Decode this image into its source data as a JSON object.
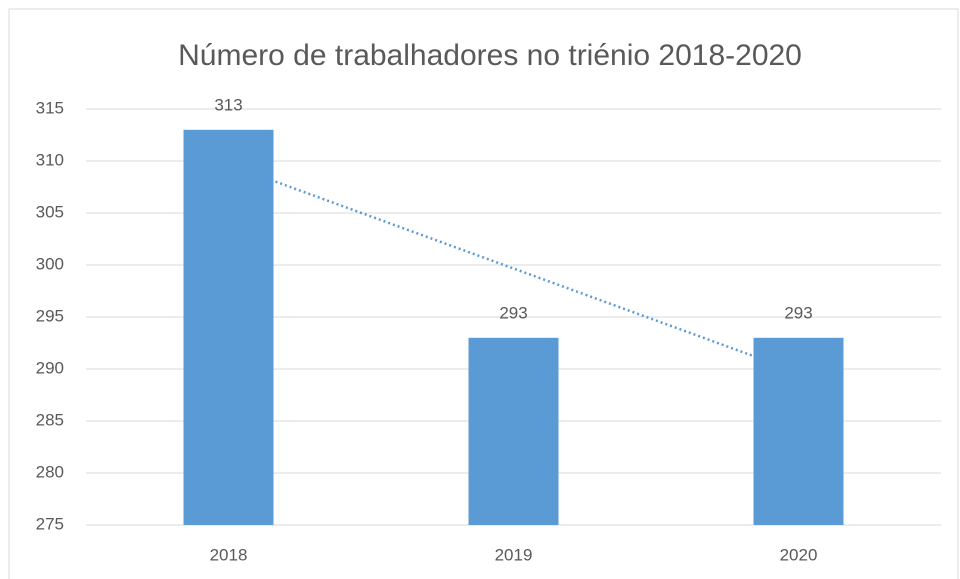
{
  "chart_data": {
    "type": "bar",
    "title": "Número de trabalhadores no triénio 2018-2020",
    "categories": [
      "2018",
      "2019",
      "2020"
    ],
    "values": [
      313,
      293,
      293
    ],
    "color": "#5b9bd5",
    "ylim": [
      275,
      315
    ],
    "yticks": [
      275,
      280,
      285,
      290,
      295,
      300,
      305,
      310,
      315
    ],
    "grid": true,
    "trendline": "linear",
    "data_labels": true
  }
}
